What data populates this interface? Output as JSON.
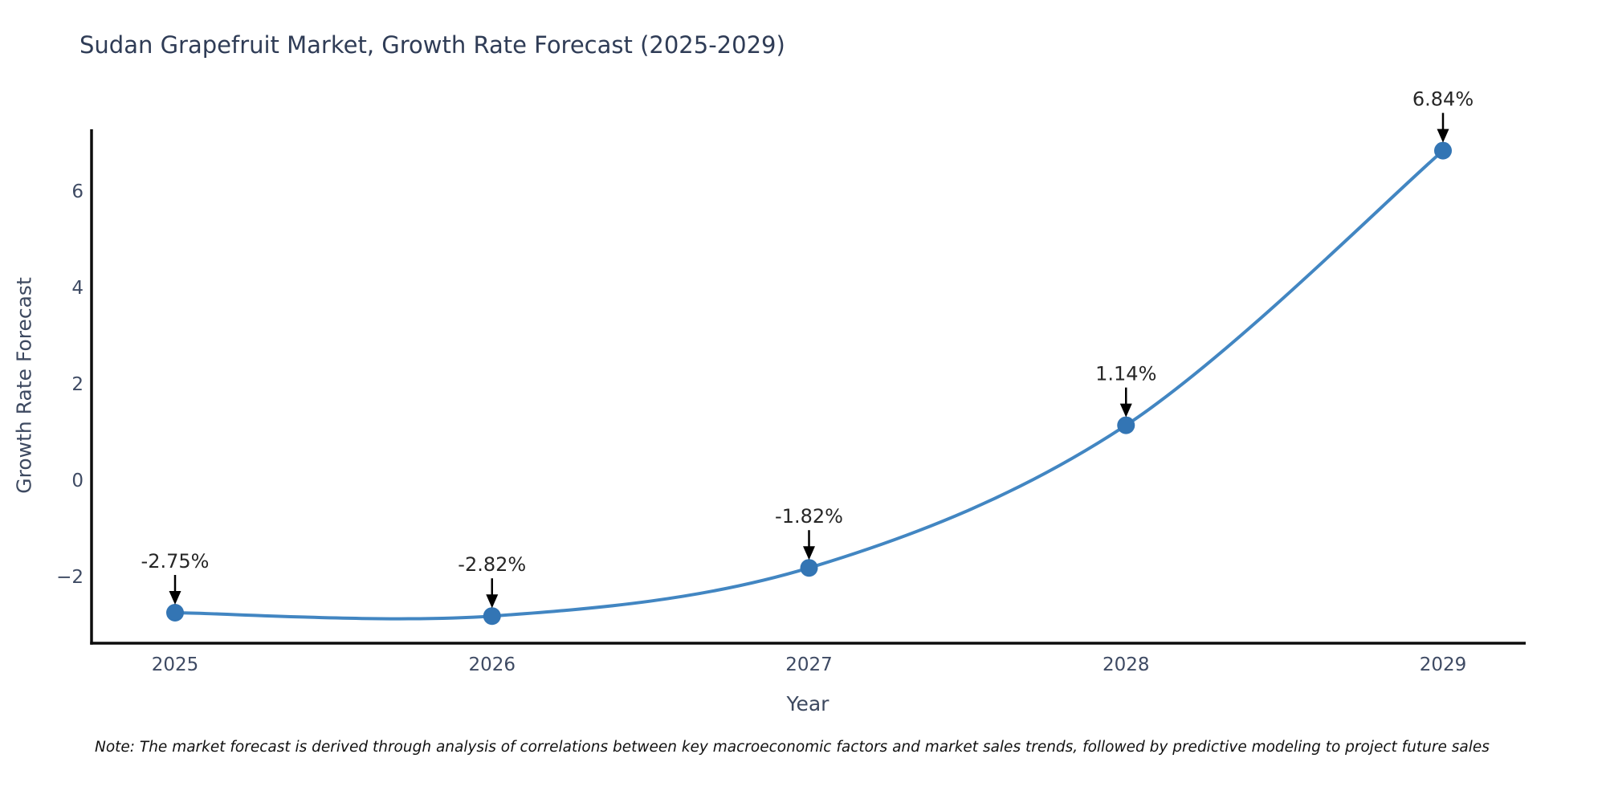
{
  "title": "Sudan Grapefruit Market, Growth Rate Forecast (2025-2029)",
  "note": "Note: The market forecast is derived through analysis of correlations between key macroeconomic factors and market sales trends, followed by predictive modeling to project future sales",
  "chart_data": {
    "type": "line",
    "x": [
      2025,
      2026,
      2027,
      2028,
      2029
    ],
    "series": [
      {
        "name": "Growth Rate Forecast",
        "values": [
          -2.75,
          -2.82,
          -1.82,
          1.14,
          6.84
        ]
      }
    ],
    "point_labels": [
      "-2.75%",
      "-2.82%",
      "-1.82%",
      "1.14%",
      "6.84%"
    ],
    "title": "Sudan Grapefruit Market, Growth Rate Forecast (2025-2029)",
    "xlabel": "Year",
    "ylabel": "Growth Rate Forecast",
    "xtick_labels": [
      "2025",
      "2026",
      "2027",
      "2028",
      "2029"
    ],
    "yticks": [
      -2,
      0,
      2,
      4,
      6
    ],
    "ytick_labels": [
      "−2",
      "0",
      "2",
      "4",
      "6"
    ],
    "ylim": [
      -3.4,
      7.3
    ],
    "grid": false,
    "legend": "none",
    "annotation_style": "black down-arrow from label to marker",
    "colors": {
      "line": "#4286c2",
      "marker": "#3375b4",
      "annotation_text": "#262626",
      "arrow": "#000000",
      "tick_label": "#3e4a63",
      "title": "#2f3c56",
      "spine": "#0d0d0d"
    }
  }
}
